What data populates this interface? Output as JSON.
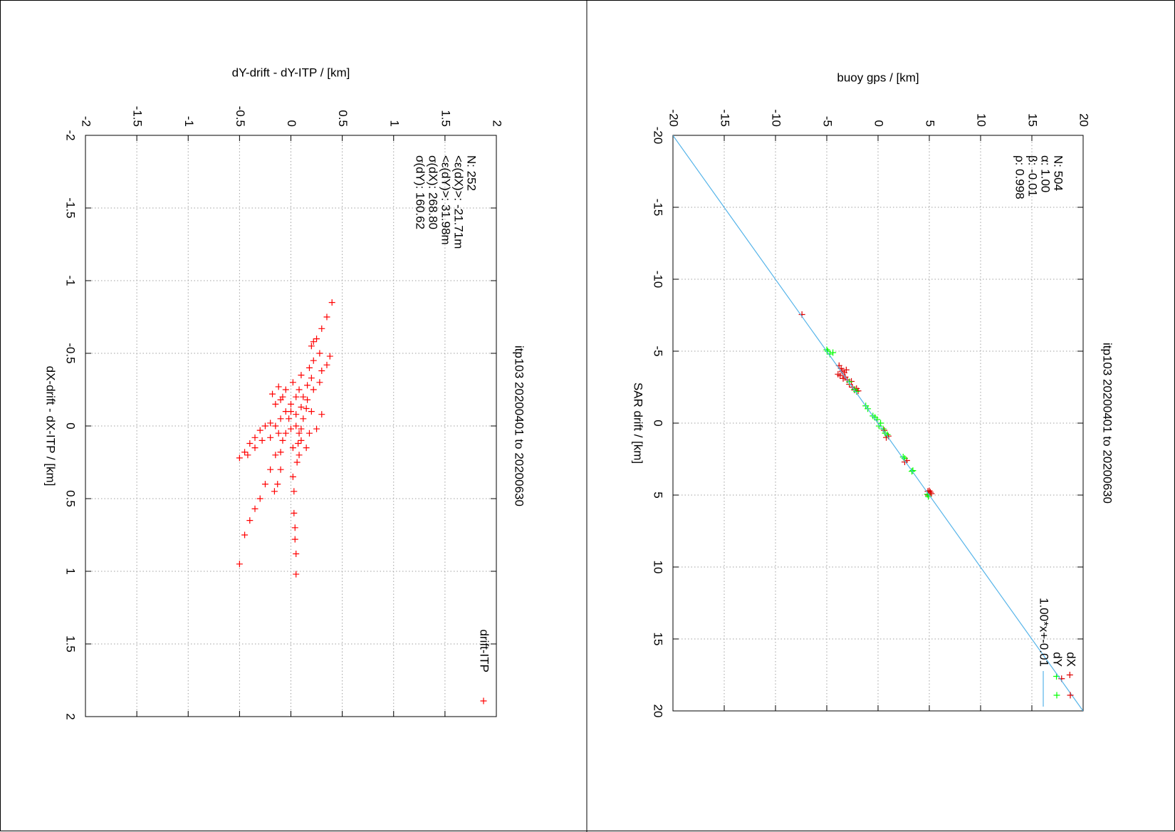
{
  "chart_data": [
    {
      "type": "scatter",
      "title": "itp103 20200401 to 20200630",
      "xlabel": "dX-drift - dX-ITP / [km]",
      "ylabel": "dY-drift - dY-ITP / [km]",
      "xlim": [
        -2,
        2
      ],
      "ylim": [
        -2,
        2
      ],
      "xticks": [
        -2,
        -1.5,
        -1,
        -0.5,
        0,
        0.5,
        1,
        1.5,
        2
      ],
      "yticks": [
        -2,
        -1.5,
        -1,
        -0.5,
        0,
        0.5,
        1,
        1.5,
        2
      ],
      "grid": true,
      "legend": "top right",
      "annotations": [
        "N: 252",
        "<ε(dX)>: -21.71m",
        "<ε(dY)>: 31.98m",
        "σ(dX): 268.80",
        "σ(dY): 160.62"
      ],
      "series": [
        {
          "name": "drift-ITP",
          "color": "#ff0000",
          "x": [
            -0.85,
            -0.75,
            -0.67,
            -0.6,
            -0.58,
            -0.55,
            -0.5,
            -0.48,
            -0.42,
            -0.38,
            -0.45,
            -0.4,
            -0.33,
            -0.3,
            -0.25,
            -0.28,
            -0.35,
            -0.25,
            -0.2,
            -0.3,
            -0.25,
            -0.27,
            -0.22,
            -0.18,
            -0.1,
            -0.15,
            -0.08,
            -0.13,
            -0.12,
            -0.05,
            -0.1,
            0.02,
            -0.08,
            0.05,
            0.02,
            0.0,
            0.02,
            0.05,
            -0.05,
            0.0,
            -0.02,
            0.0,
            0.03,
            0.08,
            0.12,
            0.18,
            0.22,
            0.2,
            0.15,
            0.1,
            0.08,
            0.05,
            0.1,
            0.2,
            0.3,
            0.4,
            0.5,
            0.57,
            0.65,
            0.75,
            0.95,
            0.3,
            0.4,
            0.45,
            0.35,
            0.45,
            0.6,
            0.7,
            0.78,
            0.88,
            1.02,
            0.2,
            0.25,
            0.1,
            0.15,
            0.05,
            -0.05,
            -0.1,
            -0.2,
            -0.18,
            -0.2,
            -0.15,
            0.18,
            0.12,
            0.15
          ],
          "values": [
            0.4,
            0.35,
            0.3,
            0.25,
            0.22,
            0.2,
            0.28,
            0.38,
            0.35,
            0.3,
            0.22,
            0.18,
            0.2,
            0.28,
            0.22,
            0.16,
            0.1,
            0.08,
            0.05,
            0.02,
            -0.05,
            -0.12,
            -0.18,
            -0.1,
            -0.05,
            0.0,
            0.05,
            0.1,
            0.15,
            0.12,
            0.2,
            0.25,
            0.3,
            0.18,
            0.1,
            0.05,
            0.0,
            -0.05,
            -0.1,
            -0.15,
            -0.2,
            -0.25,
            -0.3,
            -0.35,
            -0.4,
            -0.45,
            -0.5,
            -0.42,
            -0.35,
            -0.28,
            -0.2,
            -0.12,
            -0.08,
            -0.15,
            -0.2,
            -0.25,
            -0.3,
            -0.35,
            -0.4,
            -0.45,
            -0.5,
            -0.1,
            -0.13,
            -0.16,
            0.02,
            0.03,
            0.03,
            0.04,
            0.04,
            0.05,
            0.05,
            0.08,
            0.06,
            0.1,
            0.15,
            0.08,
            -0.02,
            0.0,
            0.12,
            0.16,
            -0.08,
            -0.15,
            -0.1,
            0.07,
            0.02
          ]
        }
      ]
    },
    {
      "type": "scatter",
      "title": "itp103 20200401 to 20200630",
      "xlabel": "SAR drift / [km]",
      "ylabel": "buoy gps / [km]",
      "xlim": [
        -20,
        20
      ],
      "ylim": [
        -20,
        20
      ],
      "xticks": [
        -20,
        -15,
        -10,
        -5,
        0,
        5,
        10,
        15,
        20
      ],
      "yticks": [
        -20,
        -15,
        -10,
        -5,
        0,
        5,
        10,
        15,
        20
      ],
      "grid": true,
      "legend": "top right",
      "annotations": [
        "N: 504",
        "α: 1.00",
        "β: -0.01",
        "ρ: 0.998"
      ],
      "series": [
        {
          "name": "dX",
          "color": "#dd0000",
          "x": [
            -7.55,
            -4.0,
            -3.8,
            -3.6,
            -3.5,
            -3.3,
            -3.2,
            -3.1,
            -3.0,
            -2.9,
            -2.7,
            -2.5,
            -2.3,
            -2.24,
            -2.4,
            -3.4,
            -3.7,
            0.5,
            0.9,
            1.0,
            2.6,
            2.7,
            4.74,
            4.8,
            4.9,
            5.0,
            4.7,
            17.5,
            17.76
          ],
          "values": [
            -7.42,
            -3.8,
            -3.6,
            -3.5,
            -3.3,
            -3.7,
            -3.2,
            -3.4,
            -3.0,
            -2.6,
            -2.8,
            -2.5,
            -2.3,
            -1.94,
            -2.1,
            -3.9,
            -3.1,
            0.6,
            1.0,
            0.8,
            2.8,
            2.6,
            4.86,
            5.1,
            5.2,
            4.9,
            5.0,
            18.7,
            17.9
          ]
        },
        {
          "name": "dY",
          "color": "#00ff00",
          "x": [
            -5.0,
            -4.8,
            -5.1,
            -4.9,
            -2.87,
            -2.34,
            -2.2,
            -1.2,
            -1.0,
            -0.5,
            -0.25,
            -0.4,
            0.0,
            0.2,
            0.4,
            0.7,
            0.8,
            2.35,
            2.45,
            3.3,
            3.35,
            4.95,
            5.1,
            17.6
          ],
          "values": [
            -4.9,
            -4.7,
            -5.0,
            -4.4,
            -2.8,
            -2.3,
            -2.1,
            -1.2,
            -1.0,
            -0.5,
            -0.1,
            -0.3,
            0.25,
            0.1,
            0.5,
            0.7,
            0.9,
            2.45,
            2.6,
            3.4,
            3.3,
            4.8,
            4.9,
            17.4
          ]
        }
      ],
      "fit": {
        "name": "1.00*x+-0.01",
        "color": "#56b4e9",
        "slope": 1.0,
        "intercept": -0.01
      }
    }
  ]
}
